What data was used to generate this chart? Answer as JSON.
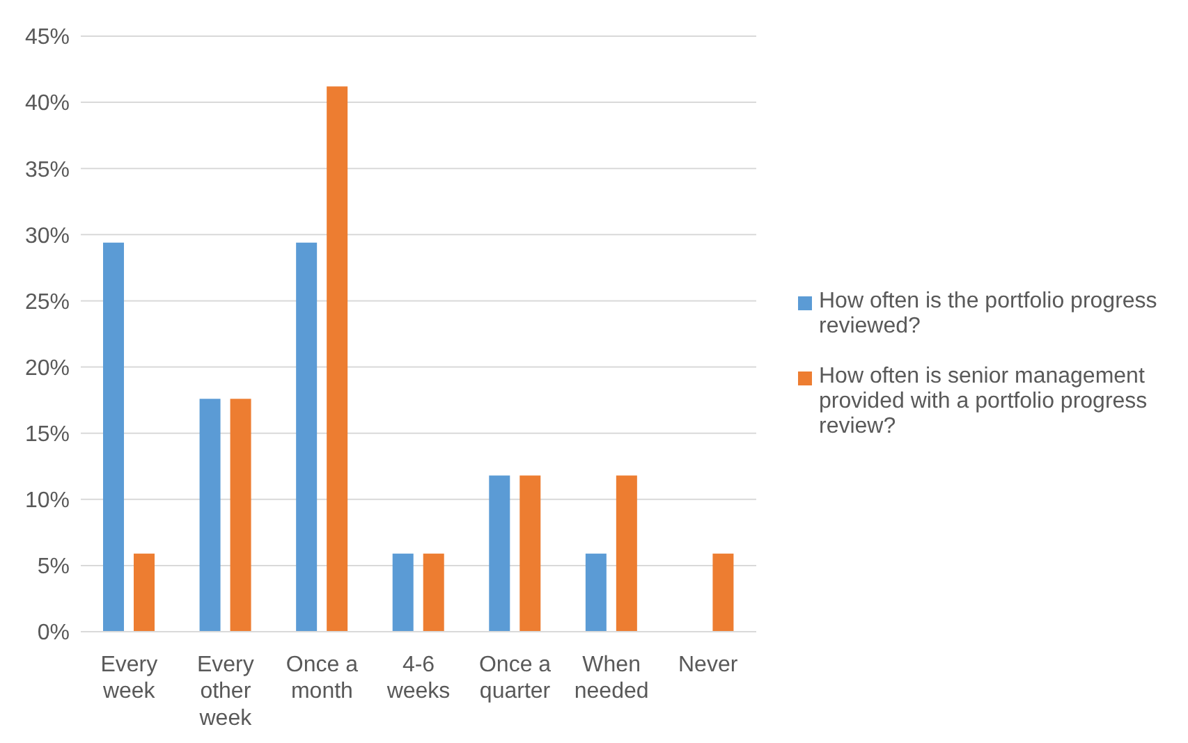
{
  "chart_data": {
    "type": "bar",
    "categories": [
      "Every week",
      "Every other week",
      "Once a month",
      "4-6 weeks",
      "Once a quarter",
      "When needed",
      "Never"
    ],
    "series": [
      {
        "name": "How often is the portfolio progress reviewed?",
        "color": "#5b9bd5",
        "values": [
          29.4,
          17.6,
          29.4,
          5.9,
          11.8,
          5.9,
          0
        ]
      },
      {
        "name": "How often is senior management provided with a portfolio progress review?",
        "color": "#ed7d31",
        "values": [
          5.9,
          17.6,
          41.2,
          5.9,
          11.8,
          11.8,
          5.9
        ]
      }
    ],
    "ylim": [
      0,
      45
    ],
    "yticks": [
      {
        "value": 0,
        "label": "0%"
      },
      {
        "value": 5,
        "label": "5%"
      },
      {
        "value": 10,
        "label": "10%"
      },
      {
        "value": 15,
        "label": "15%"
      },
      {
        "value": 20,
        "label": "20%"
      },
      {
        "value": 25,
        "label": "25%"
      },
      {
        "value": 30,
        "label": "30%"
      },
      {
        "value": 35,
        "label": "35%"
      },
      {
        "value": 40,
        "label": "40%"
      },
      {
        "value": 45,
        "label": "45%"
      }
    ],
    "grid": "y",
    "legend": "right"
  }
}
